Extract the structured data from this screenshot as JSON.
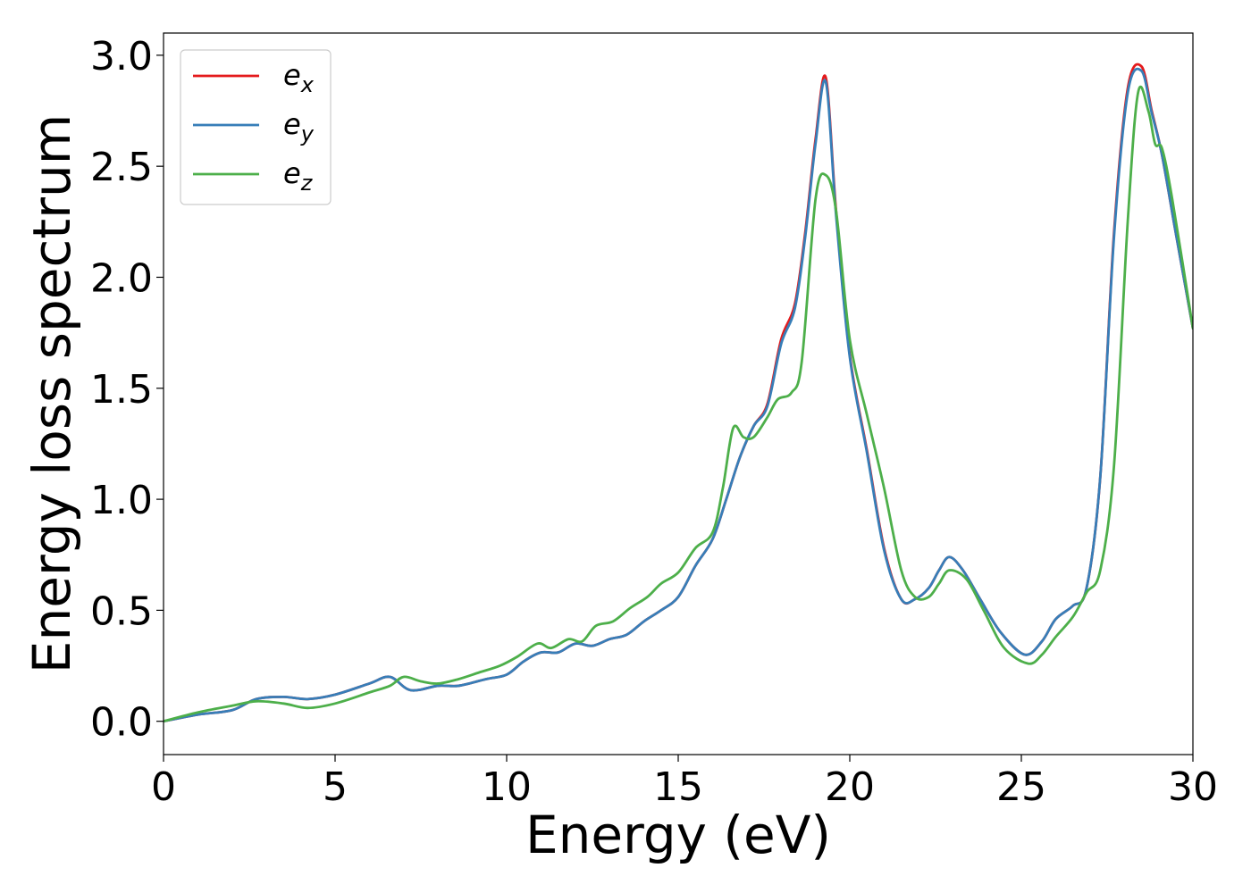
{
  "chart_data": {
    "type": "line",
    "xlabel": "Energy (eV)",
    "ylabel": "Energy loss spectrum",
    "xlim": [
      0,
      30
    ],
    "ylim": [
      -0.15,
      3.1
    ],
    "xticks": [
      0,
      5,
      10,
      15,
      20,
      25,
      30
    ],
    "xtick_labels": [
      "0",
      "5",
      "10",
      "15",
      "20",
      "25",
      "30"
    ],
    "yticks": [
      0.0,
      0.5,
      1.0,
      1.5,
      2.0,
      2.5,
      3.0
    ],
    "ytick_labels": [
      "0.0",
      "0.5",
      "1.0",
      "1.5",
      "2.0",
      "2.5",
      "3.0"
    ],
    "grid": false,
    "legend": "top-left",
    "series": [
      {
        "name": "e_x",
        "legend_base": "e",
        "legend_sub": "x",
        "color": "#e41a1c",
        "x": [
          0,
          1,
          2,
          2.7,
          3.5,
          4.2,
          5,
          6,
          6.6,
          7.2,
          8,
          8.6,
          9.4,
          10,
          10.5,
          11,
          11.5,
          12,
          12.5,
          13,
          13.5,
          14,
          14.5,
          15,
          15.5,
          16,
          16.4,
          16.8,
          17.2,
          17.6,
          18,
          18.4,
          18.7,
          19,
          19.3,
          19.6,
          20,
          20.5,
          21,
          21.5,
          21.9,
          22.3,
          22.6,
          22.9,
          23.3,
          23.8,
          24.4,
          25.1,
          25.6,
          26,
          26.5,
          26.9,
          27.3,
          27.7,
          28.1,
          28.5,
          28.8,
          29.1,
          29.5,
          30
        ],
        "values": [
          0,
          0.03,
          0.05,
          0.1,
          0.11,
          0.1,
          0.12,
          0.17,
          0.2,
          0.14,
          0.16,
          0.16,
          0.19,
          0.21,
          0.27,
          0.31,
          0.31,
          0.35,
          0.34,
          0.37,
          0.39,
          0.45,
          0.5,
          0.56,
          0.7,
          0.82,
          1.0,
          1.19,
          1.33,
          1.43,
          1.72,
          1.88,
          2.2,
          2.62,
          2.9,
          2.3,
          1.65,
          1.22,
          0.78,
          0.55,
          0.55,
          0.6,
          0.68,
          0.74,
          0.68,
          0.55,
          0.4,
          0.3,
          0.36,
          0.46,
          0.52,
          0.6,
          1.1,
          2.2,
          2.85,
          2.95,
          2.75,
          2.55,
          2.2,
          1.77
        ]
      },
      {
        "name": "e_y",
        "legend_base": "e",
        "legend_sub": "y",
        "color": "#377eb8",
        "x": [
          0,
          1,
          2,
          2.7,
          3.5,
          4.2,
          5,
          6,
          6.6,
          7.2,
          8,
          8.6,
          9.4,
          10,
          10.5,
          11,
          11.5,
          12,
          12.5,
          13,
          13.5,
          14,
          14.5,
          15,
          15.5,
          16,
          16.4,
          16.8,
          17.2,
          17.6,
          18,
          18.4,
          18.7,
          19,
          19.3,
          19.6,
          20,
          20.5,
          21,
          21.5,
          21.9,
          22.3,
          22.6,
          22.9,
          23.3,
          23.8,
          24.4,
          25.1,
          25.6,
          26,
          26.5,
          26.9,
          27.3,
          27.7,
          28.1,
          28.5,
          28.8,
          29.1,
          29.5,
          30
        ],
        "values": [
          0,
          0.03,
          0.05,
          0.1,
          0.11,
          0.1,
          0.12,
          0.17,
          0.2,
          0.14,
          0.16,
          0.16,
          0.19,
          0.21,
          0.27,
          0.31,
          0.31,
          0.35,
          0.34,
          0.37,
          0.39,
          0.45,
          0.5,
          0.56,
          0.7,
          0.82,
          1.0,
          1.19,
          1.33,
          1.42,
          1.7,
          1.86,
          2.18,
          2.6,
          2.88,
          2.28,
          1.64,
          1.21,
          0.77,
          0.55,
          0.55,
          0.6,
          0.68,
          0.74,
          0.68,
          0.55,
          0.4,
          0.3,
          0.36,
          0.46,
          0.52,
          0.6,
          1.1,
          2.18,
          2.83,
          2.93,
          2.74,
          2.55,
          2.2,
          1.77
        ]
      },
      {
        "name": "e_z",
        "legend_base": "e",
        "legend_sub": "z",
        "color": "#4daf4a",
        "x": [
          0,
          1,
          2,
          2.7,
          3.5,
          4.2,
          5,
          6,
          6.6,
          7,
          7.5,
          8,
          8.6,
          9.2,
          9.8,
          10.3,
          10.9,
          11.3,
          11.8,
          12.2,
          12.6,
          13.1,
          13.6,
          14.1,
          14.5,
          15,
          15.5,
          16,
          16.3,
          16.6,
          16.9,
          17.2,
          17.6,
          17.9,
          18.3,
          18.6,
          19,
          19.3,
          19.6,
          20,
          20.5,
          21,
          21.5,
          21.9,
          22.3,
          22.6,
          22.9,
          23.4,
          23.9,
          24.5,
          25.2,
          25.6,
          26,
          26.5,
          26.9,
          27.3,
          27.7,
          28.1,
          28.4,
          28.7,
          28.9,
          29.1,
          29.4,
          30
        ],
        "values": [
          0,
          0.04,
          0.07,
          0.09,
          0.08,
          0.06,
          0.08,
          0.13,
          0.16,
          0.2,
          0.18,
          0.17,
          0.19,
          0.22,
          0.25,
          0.29,
          0.35,
          0.33,
          0.37,
          0.36,
          0.43,
          0.45,
          0.51,
          0.56,
          0.62,
          0.67,
          0.78,
          0.85,
          1.05,
          1.32,
          1.28,
          1.28,
          1.37,
          1.45,
          1.48,
          1.62,
          2.35,
          2.46,
          2.3,
          1.72,
          1.38,
          1.05,
          0.68,
          0.56,
          0.56,
          0.62,
          0.68,
          0.64,
          0.5,
          0.33,
          0.26,
          0.3,
          0.38,
          0.47,
          0.58,
          0.68,
          1.15,
          2.25,
          2.83,
          2.75,
          2.6,
          2.58,
          2.35,
          1.77
        ]
      }
    ]
  }
}
